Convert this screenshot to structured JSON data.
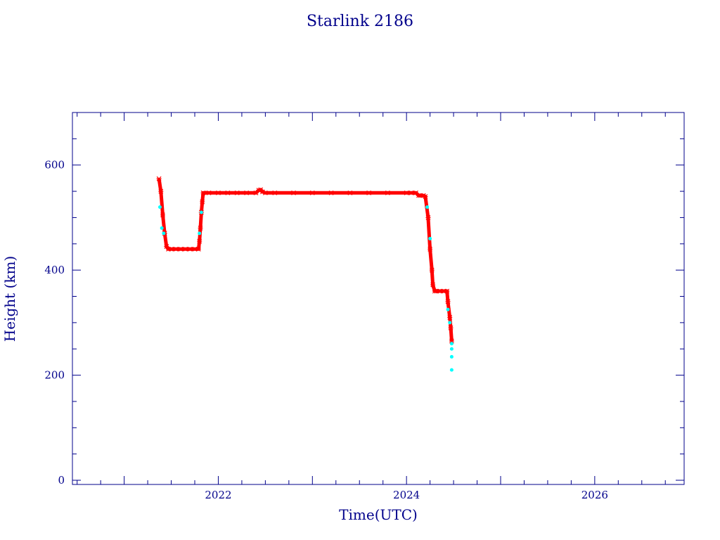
{
  "chart_data": {
    "type": "scatter",
    "title": "Starlink 2186",
    "xlabel": "Time(UTC)",
    "ylabel": "Height (km)",
    "xlim": [
      2020.45,
      2026.95
    ],
    "ylim": [
      -8,
      700
    ],
    "x_ticks": [
      2022,
      2024,
      2026
    ],
    "y_ticks": [
      0,
      200,
      400,
      600
    ],
    "grid": false,
    "colors": {
      "axis": "#00008b",
      "primary": "#ff0000",
      "secondary": "#00ffff"
    },
    "series": [
      {
        "marker": "star",
        "color": "#ff0000",
        "x": [
          2021.37,
          2021.39,
          2021.41,
          2021.43,
          2021.45,
          2021.47,
          2021.5,
          2021.55,
          2021.6,
          2021.65,
          2021.7,
          2021.75,
          2021.79,
          2021.8,
          2021.81,
          2021.82,
          2021.83,
          2021.84,
          2021.9,
          2022.0,
          2022.1,
          2022.2,
          2022.3,
          2022.4,
          2022.43,
          2022.45,
          2022.47,
          2022.5,
          2022.6,
          2022.8,
          2023.0,
          2023.2,
          2023.4,
          2023.6,
          2023.8,
          2024.0,
          2024.05,
          2024.1,
          2024.13,
          2024.15,
          2024.18,
          2024.2,
          2024.23,
          2024.25,
          2024.27,
          2024.28,
          2024.3,
          2024.32,
          2024.35,
          2024.4,
          2024.43,
          2024.44,
          2024.46,
          2024.47,
          2024.48
        ],
        "y": [
          574,
          550,
          505,
          470,
          445,
          440,
          440,
          440,
          440,
          440,
          440,
          440,
          440,
          455,
          480,
          510,
          530,
          547,
          547,
          547,
          547,
          547,
          547,
          547,
          552,
          553,
          549,
          547,
          547,
          547,
          547,
          547,
          547,
          547,
          547,
          547,
          547,
          547,
          542,
          542,
          542,
          540,
          500,
          440,
          400,
          372,
          360,
          360,
          360,
          360,
          360,
          340,
          310,
          290,
          265
        ]
      },
      {
        "marker": "dot",
        "color": "#00ffff",
        "x": [
          2021.38,
          2021.4,
          2021.42,
          2021.8,
          2021.82,
          2024.22,
          2024.25,
          2024.44,
          2024.46,
          2024.48,
          2024.48,
          2024.48,
          2024.48
        ],
        "y": [
          520,
          480,
          470,
          470,
          510,
          520,
          460,
          325,
          300,
          260,
          250,
          235,
          210
        ]
      }
    ]
  }
}
